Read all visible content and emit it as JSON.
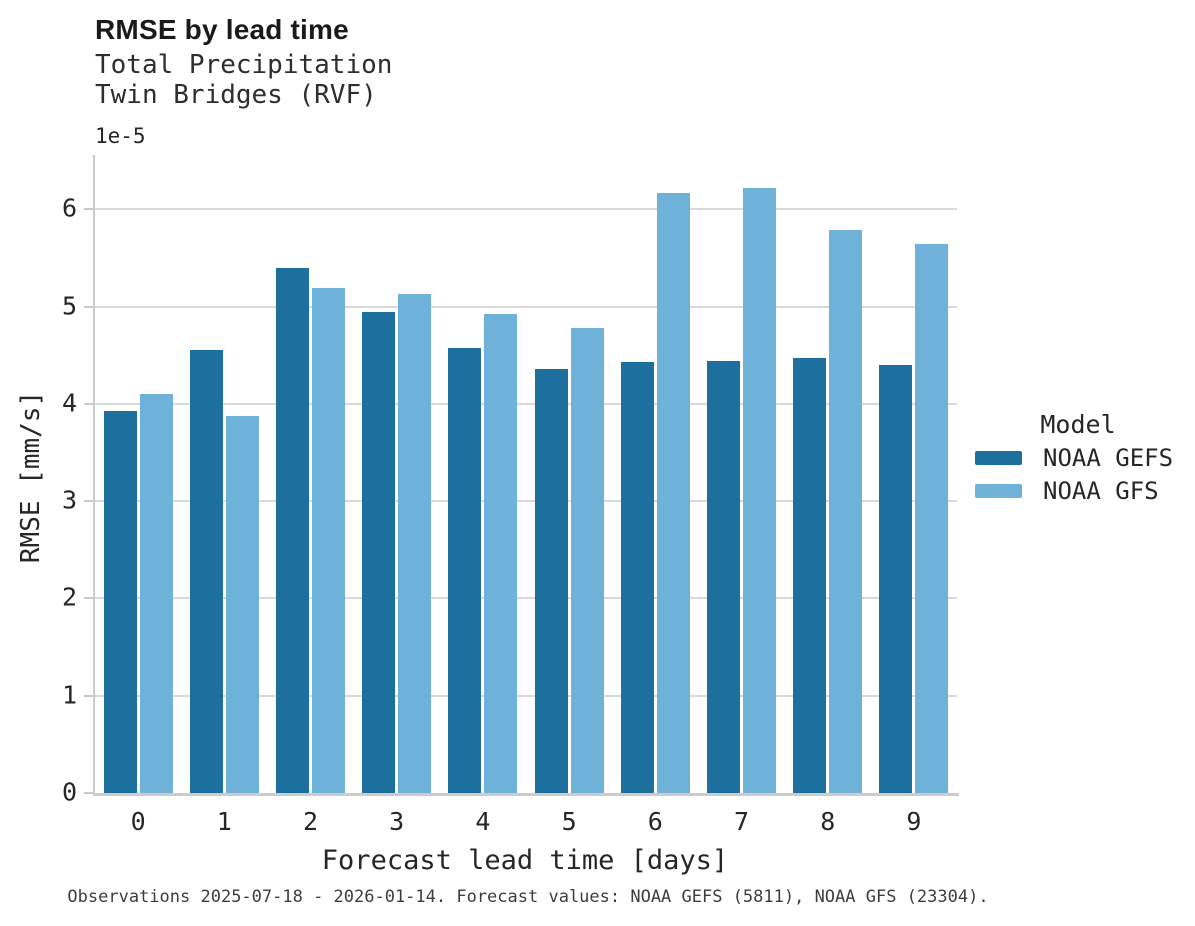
{
  "header": {
    "title": "RMSE by lead time",
    "subtitle_line1": "Total Precipitation",
    "subtitle_line2": "Twin Bridges (RVF)"
  },
  "axes": {
    "y_offset_label": "1e-5",
    "ylabel": "RMSE [mm/s]",
    "xlabel": "Forecast lead time [days]"
  },
  "legend": {
    "title": "Model"
  },
  "footer": {
    "text": "Observations 2025-07-18 - 2026-01-14. Forecast values: NOAA GEFS (5811), NOAA GFS (23304)."
  },
  "colors": {
    "noaa_gefs": "#1d6f9e",
    "noaa_gfs": "#6fb2d9",
    "gridline": "#d9d9d9",
    "text": "#262626"
  },
  "chart_data": {
    "type": "bar",
    "title": "RMSE by lead time",
    "subtitle": [
      "Total Precipitation",
      "Twin Bridges (RVF)"
    ],
    "categories": [
      "0",
      "1",
      "2",
      "3",
      "4",
      "5",
      "6",
      "7",
      "8",
      "9"
    ],
    "series": [
      {
        "name": "NOAA GEFS",
        "color": "#1d6f9e",
        "values": [
          3.93,
          4.55,
          5.4,
          4.95,
          4.58,
          4.36,
          4.43,
          4.44,
          4.47,
          4.4
        ]
      },
      {
        "name": "NOAA GFS",
        "color": "#6fb2d9",
        "values": [
          4.1,
          3.88,
          5.19,
          5.13,
          4.93,
          4.78,
          6.17,
          6.22,
          5.79,
          5.65
        ]
      }
    ],
    "value_scale_note": "values are in units of 1e-5 mm/s",
    "xlabel": "Forecast lead time [days]",
    "ylabel": "RMSE [mm/s]",
    "y_offset_label": "1e-5",
    "yticks": [
      0,
      1,
      2,
      3,
      4,
      5,
      6
    ],
    "ylim": [
      0,
      6.56
    ],
    "grid": "horizontal",
    "legend_title": "Model",
    "legend_position": "right",
    "footnote": "Observations 2025-07-18 - 2026-01-14. Forecast values: NOAA GEFS (5811), NOAA GFS (23304)."
  }
}
